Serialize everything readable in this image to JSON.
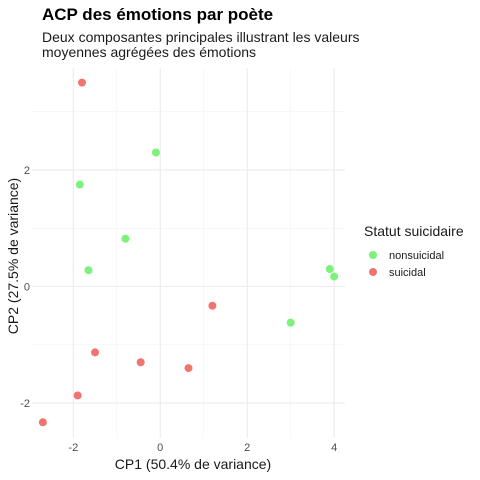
{
  "chart_data": {
    "type": "scatter",
    "title": "ACP des émotions par poète",
    "subtitle": "Deux composantes principales illustrant les valeurs moyennes agrégées des émotions",
    "xlabel": "CP1 (50.4% de variance)",
    "ylabel": "CP2 (27.5% de variance)",
    "xlim": [
      -2.95,
      4.25
    ],
    "ylim": [
      -2.6,
      3.75
    ],
    "xticks": [
      -2,
      0,
      2,
      4
    ],
    "xtick_labels": [
      "-2",
      "0",
      "2",
      "4"
    ],
    "yticks": [
      -2,
      0,
      2
    ],
    "ytick_labels": [
      "-2",
      "0",
      "2"
    ],
    "grid": true,
    "legend": {
      "title": "Statut suicidaire",
      "position": "right"
    },
    "series": [
      {
        "name": "nonsuicidal",
        "color": "#7cf17c",
        "points": [
          {
            "x": -0.1,
            "y": 2.3
          },
          {
            "x": -1.85,
            "y": 1.75
          },
          {
            "x": -0.8,
            "y": 0.82
          },
          {
            "x": -1.65,
            "y": 0.28
          },
          {
            "x": 3.9,
            "y": 0.3
          },
          {
            "x": 4.0,
            "y": 0.17
          },
          {
            "x": 3.0,
            "y": -0.62
          }
        ]
      },
      {
        "name": "suicidal",
        "color": "#f07470",
        "points": [
          {
            "x": -1.8,
            "y": 3.5
          },
          {
            "x": 1.2,
            "y": -0.33
          },
          {
            "x": -1.5,
            "y": -1.13
          },
          {
            "x": -0.45,
            "y": -1.3
          },
          {
            "x": 0.65,
            "y": -1.4
          },
          {
            "x": -1.9,
            "y": -1.87
          },
          {
            "x": -2.7,
            "y": -2.33
          }
        ]
      }
    ]
  }
}
